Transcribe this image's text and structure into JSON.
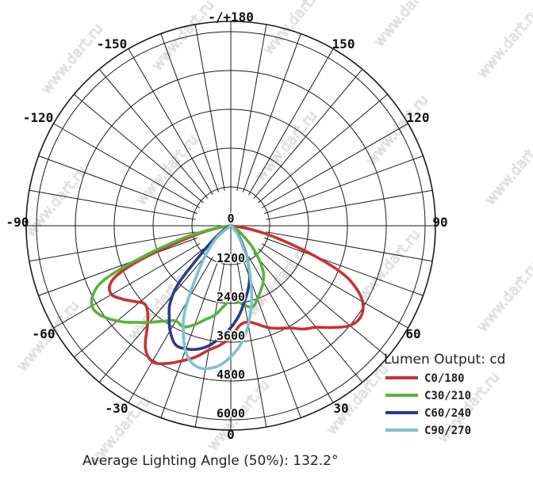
{
  "chart_data": {
    "type": "polar-line",
    "angle_tick_labels": [
      "-/+180",
      "-150",
      "150",
      "-120",
      "120",
      "-90",
      "90",
      "-60",
      "60",
      "-30",
      "30",
      "0"
    ],
    "radial_tick_labels": [
      "0",
      "1200",
      "2400",
      "3600",
      "4800",
      "6000"
    ],
    "radial_range": [
      0,
      6000
    ],
    "radial_unit": "cd",
    "legend_title": "Lumen Output: cd",
    "legend_position": "bottom-right",
    "footer": "Average Lighting Angle (50%): 132.2°",
    "watermark_text": "www.dart.ru",
    "series": [
      {
        "name": "C0/180",
        "color": "#c83232",
        "points": [
          [
            -90,
            0
          ],
          [
            -80,
            450
          ],
          [
            -75,
            1200
          ],
          [
            -70,
            2700
          ],
          [
            -67,
            3700
          ],
          [
            -64,
            4150
          ],
          [
            -60,
            4250
          ],
          [
            -56,
            4050
          ],
          [
            -52,
            3800
          ],
          [
            -48,
            3600
          ],
          [
            -44,
            3700
          ],
          [
            -40,
            4000
          ],
          [
            -35,
            4600
          ],
          [
            -30,
            4850
          ],
          [
            -25,
            4700
          ],
          [
            -20,
            4450
          ],
          [
            -15,
            4200
          ],
          [
            -10,
            3900
          ],
          [
            -5,
            3700
          ],
          [
            0,
            3450
          ],
          [
            5,
            3100
          ],
          [
            10,
            3020
          ],
          [
            15,
            3150
          ],
          [
            20,
            3350
          ],
          [
            25,
            3500
          ],
          [
            30,
            3650
          ],
          [
            35,
            3900
          ],
          [
            40,
            4100
          ],
          [
            45,
            4450
          ],
          [
            50,
            4800
          ],
          [
            55,
            4900
          ],
          [
            60,
            4700
          ],
          [
            64,
            4250
          ],
          [
            67,
            3700
          ],
          [
            70,
            2800
          ],
          [
            75,
            1500
          ],
          [
            80,
            600
          ],
          [
            90,
            0
          ]
        ]
      },
      {
        "name": "C30/210",
        "color": "#5ab23c",
        "points": [
          [
            -90,
            0
          ],
          [
            -80,
            550
          ],
          [
            -75,
            1600
          ],
          [
            -70,
            3100
          ],
          [
            -67,
            4200
          ],
          [
            -64,
            4700
          ],
          [
            -60,
            4950
          ],
          [
            -56,
            4900
          ],
          [
            -52,
            4700
          ],
          [
            -48,
            4450
          ],
          [
            -44,
            4150
          ],
          [
            -40,
            3900
          ],
          [
            -35,
            3600
          ],
          [
            -30,
            3400
          ],
          [
            -25,
            3450
          ],
          [
            -20,
            3250
          ],
          [
            -15,
            3000
          ],
          [
            -10,
            2800
          ],
          [
            -5,
            2500
          ],
          [
            0,
            2300
          ],
          [
            5,
            2350
          ],
          [
            10,
            2500
          ],
          [
            15,
            2600
          ],
          [
            20,
            2400
          ],
          [
            25,
            2200
          ],
          [
            30,
            2000
          ],
          [
            35,
            1750
          ],
          [
            40,
            1350
          ],
          [
            45,
            950
          ],
          [
            50,
            550
          ],
          [
            60,
            200
          ],
          [
            90,
            0
          ]
        ]
      },
      {
        "name": "C60/240",
        "color": "#283c8c",
        "points": [
          [
            -90,
            0
          ],
          [
            -60,
            250
          ],
          [
            -50,
            800
          ],
          [
            -45,
            1550
          ],
          [
            -42,
            2450
          ],
          [
            -38,
            3050
          ],
          [
            -34,
            3400
          ],
          [
            -30,
            3750
          ],
          [
            -25,
            4050
          ],
          [
            -20,
            4050
          ],
          [
            -15,
            3950
          ],
          [
            -10,
            3750
          ],
          [
            -5,
            3450
          ],
          [
            0,
            3150
          ],
          [
            5,
            2800
          ],
          [
            10,
            2400
          ],
          [
            15,
            2050
          ],
          [
            20,
            1700
          ],
          [
            25,
            1250
          ],
          [
            30,
            850
          ],
          [
            40,
            350
          ],
          [
            90,
            0
          ]
        ]
      },
      {
        "name": "C90/270",
        "color": "#7ec1cf",
        "points": [
          [
            -90,
            0
          ],
          [
            -50,
            550
          ],
          [
            -40,
            1250
          ],
          [
            -32,
            2250
          ],
          [
            -28,
            3050
          ],
          [
            -24,
            3600
          ],
          [
            -20,
            4100
          ],
          [
            -16,
            4400
          ],
          [
            -12,
            4500
          ],
          [
            -8,
            4450
          ],
          [
            -4,
            4300
          ],
          [
            0,
            4050
          ],
          [
            4,
            3750
          ],
          [
            8,
            3350
          ],
          [
            12,
            2850
          ],
          [
            16,
            2350
          ],
          [
            20,
            1800
          ],
          [
            25,
            1250
          ],
          [
            30,
            750
          ],
          [
            40,
            300
          ],
          [
            90,
            0
          ]
        ]
      }
    ]
  }
}
